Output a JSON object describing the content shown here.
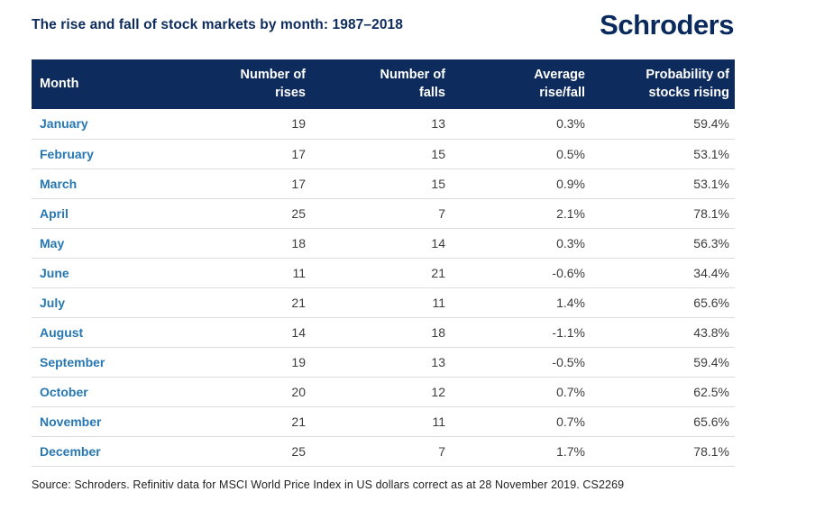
{
  "title": "The rise and fall of stock markets by month: 1987–2018",
  "logo": "Schroders",
  "colors": {
    "navy": "#0d2b5c",
    "logo_navy": "#0a2a5e",
    "month_blue": "#2677b2",
    "cell_text": "#3c3c3c",
    "row_divider": "#dcdcdc",
    "header_text": "#ffffff",
    "background": "#ffffff"
  },
  "table": {
    "header": {
      "month": "Month",
      "cols": [
        {
          "l1": "Number of",
          "l2": "rises"
        },
        {
          "l1": "Number of",
          "l2": "falls"
        },
        {
          "l1": "Average",
          "l2": "rise/fall"
        },
        {
          "l1": "Probability of",
          "l2": "stocks rising"
        }
      ]
    },
    "rows": [
      {
        "month": "January",
        "rises": "19",
        "falls": "13",
        "avg": "0.3%",
        "prob": "59.4%"
      },
      {
        "month": "February",
        "rises": "17",
        "falls": "15",
        "avg": "0.5%",
        "prob": "53.1%"
      },
      {
        "month": "March",
        "rises": "17",
        "falls": "15",
        "avg": "0.9%",
        "prob": "53.1%"
      },
      {
        "month": "April",
        "rises": "25",
        "falls": "7",
        "avg": "2.1%",
        "prob": "78.1%"
      },
      {
        "month": "May",
        "rises": "18",
        "falls": "14",
        "avg": "0.3%",
        "prob": "56.3%"
      },
      {
        "month": "June",
        "rises": "11",
        "falls": "21",
        "avg": "-0.6%",
        "prob": "34.4%"
      },
      {
        "month": "July",
        "rises": "21",
        "falls": "11",
        "avg": "1.4%",
        "prob": "65.6%"
      },
      {
        "month": "August",
        "rises": "14",
        "falls": "18",
        "avg": "-1.1%",
        "prob": "43.8%"
      },
      {
        "month": "September",
        "rises": "19",
        "falls": "13",
        "avg": "-0.5%",
        "prob": "59.4%"
      },
      {
        "month": "October",
        "rises": "20",
        "falls": "12",
        "avg": "0.7%",
        "prob": "62.5%"
      },
      {
        "month": "November",
        "rises": "21",
        "falls": "11",
        "avg": "0.7%",
        "prob": "65.6%"
      },
      {
        "month": "December",
        "rises": "25",
        "falls": "7",
        "avg": "1.7%",
        "prob": "78.1%"
      }
    ]
  },
  "source": "Source: Schroders. Refinitiv data for MSCI World Price Index in US dollars correct as at 28 November 2019. CS2269",
  "chart_data": {
    "type": "table",
    "title": "The rise and fall of stock markets by month: 1987–2018",
    "columns": [
      "Month",
      "Number of rises",
      "Number of falls",
      "Average rise/fall",
      "Probability of stocks rising"
    ],
    "categories": [
      "January",
      "February",
      "March",
      "April",
      "May",
      "June",
      "July",
      "August",
      "September",
      "October",
      "November",
      "December"
    ],
    "series": [
      {
        "name": "Number of rises",
        "values": [
          19,
          17,
          17,
          25,
          18,
          11,
          21,
          14,
          19,
          20,
          21,
          25
        ]
      },
      {
        "name": "Number of falls",
        "values": [
          13,
          15,
          15,
          7,
          14,
          21,
          11,
          18,
          13,
          12,
          11,
          7
        ]
      },
      {
        "name": "Average rise/fall (%)",
        "values": [
          0.3,
          0.5,
          0.9,
          2.1,
          0.3,
          -0.6,
          1.4,
          -1.1,
          -0.5,
          0.7,
          0.7,
          1.7
        ]
      },
      {
        "name": "Probability of stocks rising (%)",
        "values": [
          59.4,
          53.1,
          53.1,
          78.1,
          56.3,
          34.4,
          65.6,
          43.8,
          59.4,
          62.5,
          65.6,
          78.1
        ]
      }
    ]
  }
}
